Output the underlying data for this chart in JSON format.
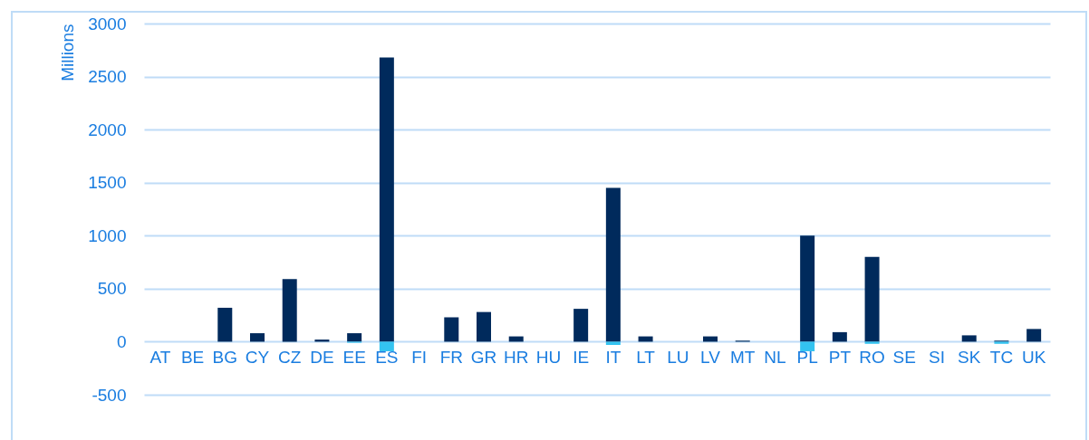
{
  "chart_data": {
    "type": "bar",
    "ylabel": "Millions",
    "categories": [
      "AT",
      "BE",
      "BG",
      "CY",
      "CZ",
      "DE",
      "EE",
      "ES",
      "FI",
      "FR",
      "GR",
      "HR",
      "HU",
      "IE",
      "IT",
      "LT",
      "LU",
      "LV",
      "MT",
      "NL",
      "PL",
      "PT",
      "RO",
      "SE",
      "SI",
      "SK",
      "TC",
      "UK"
    ],
    "series": [
      {
        "color": "#002a5c",
        "values": [
          0,
          0,
          320,
          80,
          590,
          20,
          80,
          2680,
          0,
          230,
          280,
          50,
          0,
          310,
          1450,
          50,
          0,
          50,
          10,
          0,
          1000,
          90,
          800,
          0,
          0,
          60,
          10,
          120
        ]
      },
      {
        "color": "#33c3f0",
        "values": [
          0,
          0,
          0,
          0,
          0,
          0,
          -10,
          -90,
          0,
          0,
          0,
          0,
          0,
          0,
          -30,
          0,
          0,
          0,
          0,
          0,
          -90,
          0,
          -20,
          0,
          0,
          0,
          -20,
          0
        ]
      }
    ],
    "stacked": true,
    "ylim": [
      -500,
      3000
    ],
    "yticks": [
      -500,
      0,
      500,
      1000,
      1500,
      2000,
      2500,
      3000
    ],
    "grid": "y"
  }
}
